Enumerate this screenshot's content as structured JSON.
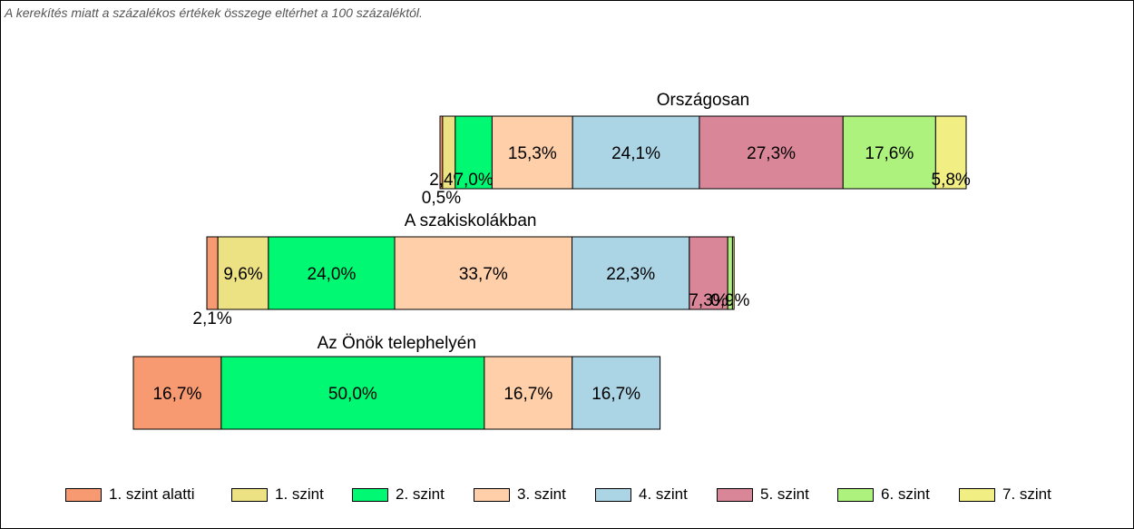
{
  "note": "A kerekítés miatt a  százalékos értékek összege eltérhet a 100 százaléktól.",
  "chart_data": {
    "type": "bar",
    "orientation": "horizontal",
    "stacked": true,
    "percent_of_100": true,
    "grid": false,
    "legend_position": "bottom",
    "series": [
      {
        "name": "1. szint alatti",
        "color": "#F79A72"
      },
      {
        "name": "1. szint",
        "color": "#EDE283"
      },
      {
        "name": "2. szint",
        "color": "#00F872"
      },
      {
        "name": "3. szint",
        "color": "#FECFA8"
      },
      {
        "name": "4. szint",
        "color": "#ABD4E4"
      },
      {
        "name": "5. szint",
        "color": "#D98698"
      },
      {
        "name": "6. szint",
        "color": "#ACF27C"
      },
      {
        "name": "7. szint",
        "color": "#F1EE83"
      }
    ],
    "groups": [
      {
        "title": "Országosan",
        "values": [
          0.5,
          2.4,
          7.0,
          15.3,
          24.1,
          27.3,
          17.6,
          5.8
        ],
        "labels": [
          "0,5%",
          "2,4%",
          "7,0%",
          "15,3%",
          "24,1%",
          "27,3%",
          "17,6%",
          "5,8%"
        ]
      },
      {
        "title": "A szakiskolákban",
        "values": [
          2.1,
          9.6,
          24.0,
          33.7,
          22.3,
          7.3,
          0.9,
          0.3
        ],
        "labels": [
          "2,1%",
          "9,6%",
          "24,0%",
          "33,7%",
          "22,3%",
          "7,3%",
          "0,9%",
          ""
        ]
      },
      {
        "title": "Az Önök telephelyén",
        "values": [
          16.7,
          0,
          50.0,
          16.7,
          16.7,
          0,
          0,
          0
        ],
        "labels": [
          "16,7%",
          "",
          "50,0%",
          "16,7%",
          "16,7%",
          "",
          "",
          ""
        ]
      }
    ]
  }
}
